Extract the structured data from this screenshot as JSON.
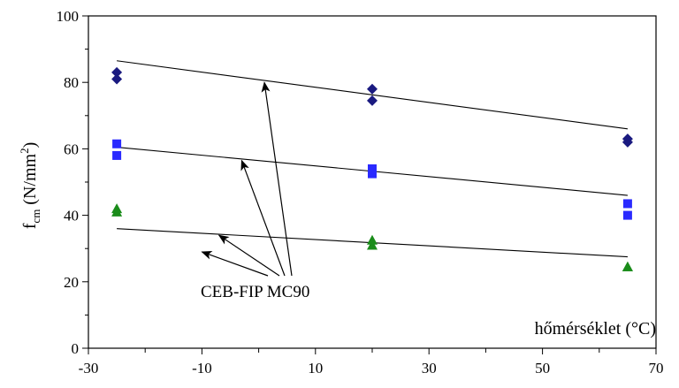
{
  "chart_data": {
    "type": "scatter",
    "xlabel": "hőmérséklet (°C)",
    "ylabel": {
      "main": "f",
      "sub": "cm",
      "unit_open": " (N/mm",
      "sup": "2",
      "unit_close": ")"
    },
    "xlim": [
      -30,
      70
    ],
    "ylim": [
      0,
      100
    ],
    "x_ticks": [
      -30,
      -10,
      10,
      30,
      50,
      70
    ],
    "y_ticks": [
      0,
      20,
      40,
      60,
      80,
      100
    ],
    "grid": false,
    "series": [
      {
        "marker": "diamond",
        "color": "#1a1a80",
        "points": [
          [
            -25,
            83
          ],
          [
            -25,
            81
          ],
          [
            20,
            78
          ],
          [
            20,
            74.5
          ],
          [
            65,
            63
          ],
          [
            65,
            62
          ]
        ]
      },
      {
        "marker": "square",
        "color": "#2a2aff",
        "points": [
          [
            -25,
            61.5
          ],
          [
            -25,
            58
          ],
          [
            20,
            54
          ],
          [
            20,
            52.5
          ],
          [
            65,
            43.5
          ],
          [
            65,
            40
          ]
        ]
      },
      {
        "marker": "triangle",
        "color": "#1a8c1a",
        "points": [
          [
            -25,
            42
          ],
          [
            -25,
            41
          ],
          [
            20,
            32.5
          ],
          [
            20,
            31
          ],
          [
            65,
            24.5
          ],
          [
            65,
            24.5
          ]
        ]
      }
    ],
    "model_lines": [
      {
        "name": "CEB-FIP MC90",
        "x": [
          -25,
          65
        ],
        "y": [
          86.5,
          66
        ]
      },
      {
        "name": "CEB-FIP MC90",
        "x": [
          -25,
          65
        ],
        "y": [
          60.5,
          46
        ]
      },
      {
        "name": "CEB-FIP MC90",
        "x": [
          -25,
          65
        ],
        "y": [
          36,
          27.5
        ]
      }
    ],
    "annotation": {
      "text": "CEB-FIP MC90",
      "arrow_targets": [
        [
          1,
          80
        ],
        [
          -3,
          56.5
        ],
        [
          -7,
          34
        ],
        [
          -10,
          29
        ]
      ]
    }
  }
}
